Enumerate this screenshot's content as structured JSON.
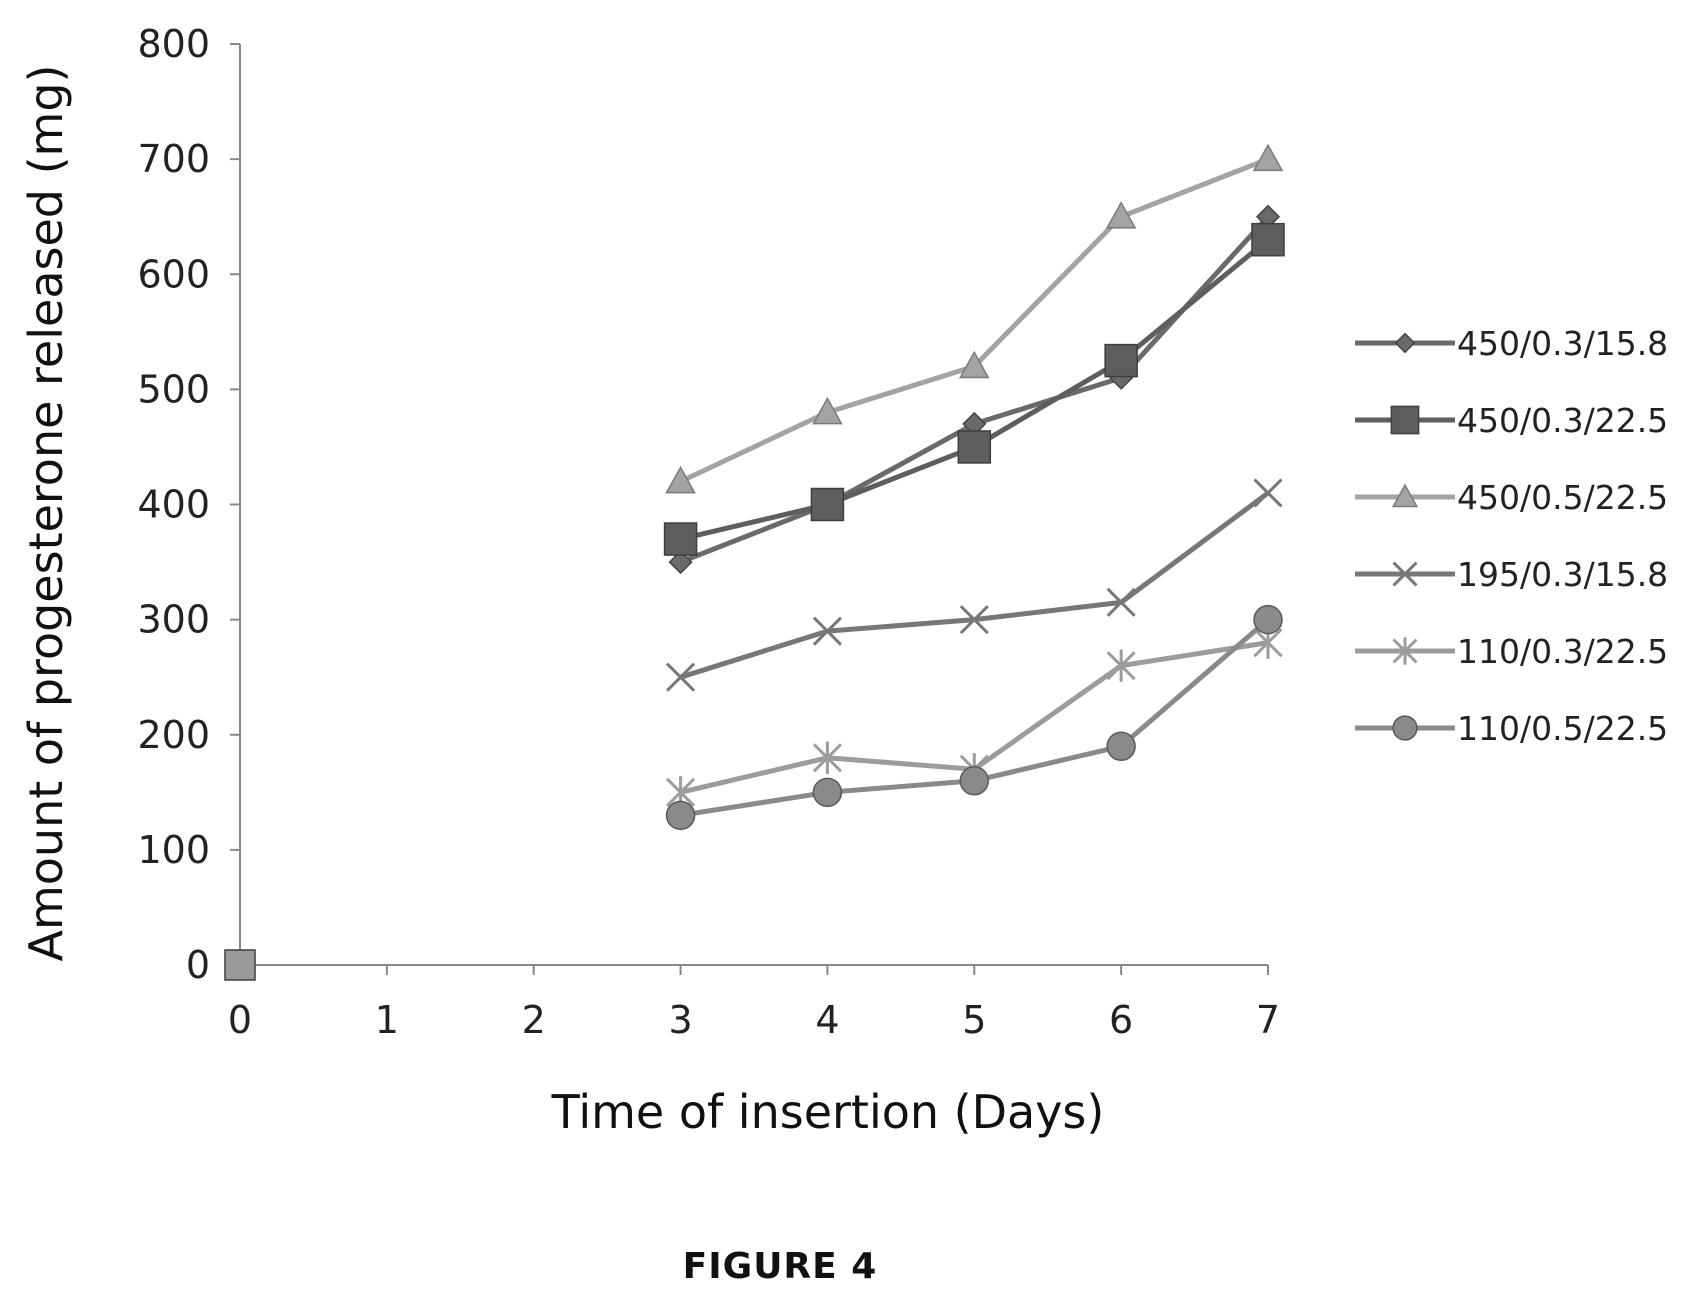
{
  "chart_data": {
    "type": "line",
    "title": "",
    "xlabel": "Time of insertion (Days)",
    "ylabel": "Amount of progesterone released (mg)",
    "xlim": [
      0,
      7
    ],
    "ylim": [
      0,
      800
    ],
    "x_ticks": [
      0,
      1,
      2,
      3,
      4,
      5,
      6,
      7
    ],
    "y_ticks": [
      0,
      100,
      200,
      300,
      400,
      500,
      600,
      700,
      800
    ],
    "grid": false,
    "legend_position": "right",
    "series": [
      {
        "name": "450/0.3/15.8",
        "marker": "diamond",
        "color": "#6a6a6a",
        "x": [
          0,
          3,
          4,
          5,
          6,
          7
        ],
        "y": [
          0,
          350,
          400,
          470,
          510,
          650
        ]
      },
      {
        "name": "450/0.3/22.5",
        "marker": "square",
        "color": "#5e5e5e",
        "x": [
          0,
          3,
          4,
          5,
          6,
          7
        ],
        "y": [
          0,
          370,
          400,
          450,
          525,
          630
        ]
      },
      {
        "name": "450/0.5/22.5",
        "marker": "triangle",
        "color": "#a3a3a3",
        "x": [
          0,
          3,
          4,
          5,
          6,
          7
        ],
        "y": [
          0,
          420,
          480,
          520,
          650,
          700
        ]
      },
      {
        "name": "195/0.3/15.8",
        "marker": "x",
        "color": "#777777",
        "x": [
          0,
          3,
          4,
          5,
          6,
          7
        ],
        "y": [
          0,
          250,
          290,
          300,
          315,
          410
        ]
      },
      {
        "name": "110/0.3/22.5",
        "marker": "star",
        "color": "#9c9c9c",
        "x": [
          0,
          3,
          4,
          5,
          6,
          7
        ],
        "y": [
          0,
          150,
          180,
          170,
          260,
          280
        ]
      },
      {
        "name": "110/0.5/22.5",
        "marker": "circle",
        "color": "#8a8a8a",
        "x": [
          0,
          3,
          4,
          5,
          6,
          7
        ],
        "y": [
          0,
          130,
          150,
          160,
          190,
          300
        ]
      }
    ]
  },
  "caption": "FIGURE 4"
}
